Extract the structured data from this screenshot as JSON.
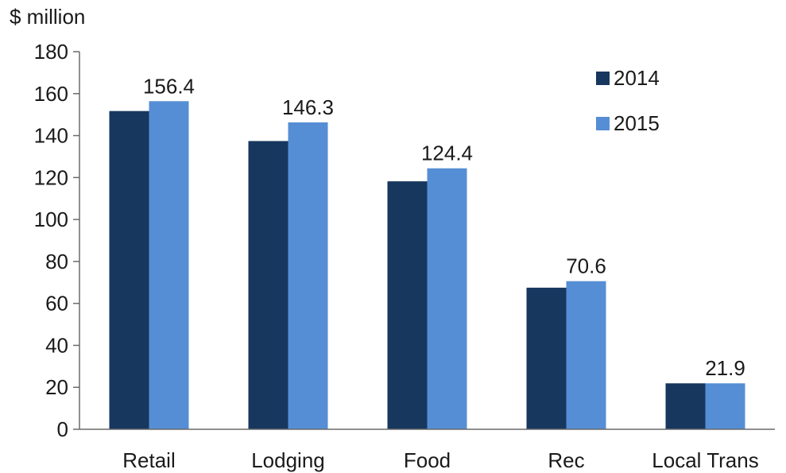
{
  "chart_data": {
    "type": "bar",
    "unit_label": "$ million",
    "categories": [
      "Retail",
      "Lodging",
      "Food",
      "Rec",
      "Local Trans"
    ],
    "series": [
      {
        "name": "2014",
        "color": "#17375e",
        "values": [
          151.7,
          137.4,
          118.2,
          67.5,
          21.9
        ]
      },
      {
        "name": "2015",
        "color": "#558ed5",
        "values": [
          156.4,
          146.3,
          124.4,
          70.6,
          21.9
        ]
      }
    ],
    "data_labels": {
      "series": "2015",
      "values": [
        "156.4",
        "146.3",
        "124.4",
        "70.6",
        "21.9"
      ]
    },
    "y_ticks": [
      0,
      20,
      40,
      60,
      80,
      100,
      120,
      140,
      160,
      180
    ],
    "ylim": [
      0,
      180
    ],
    "grid": false,
    "legend_position": "top-right"
  }
}
